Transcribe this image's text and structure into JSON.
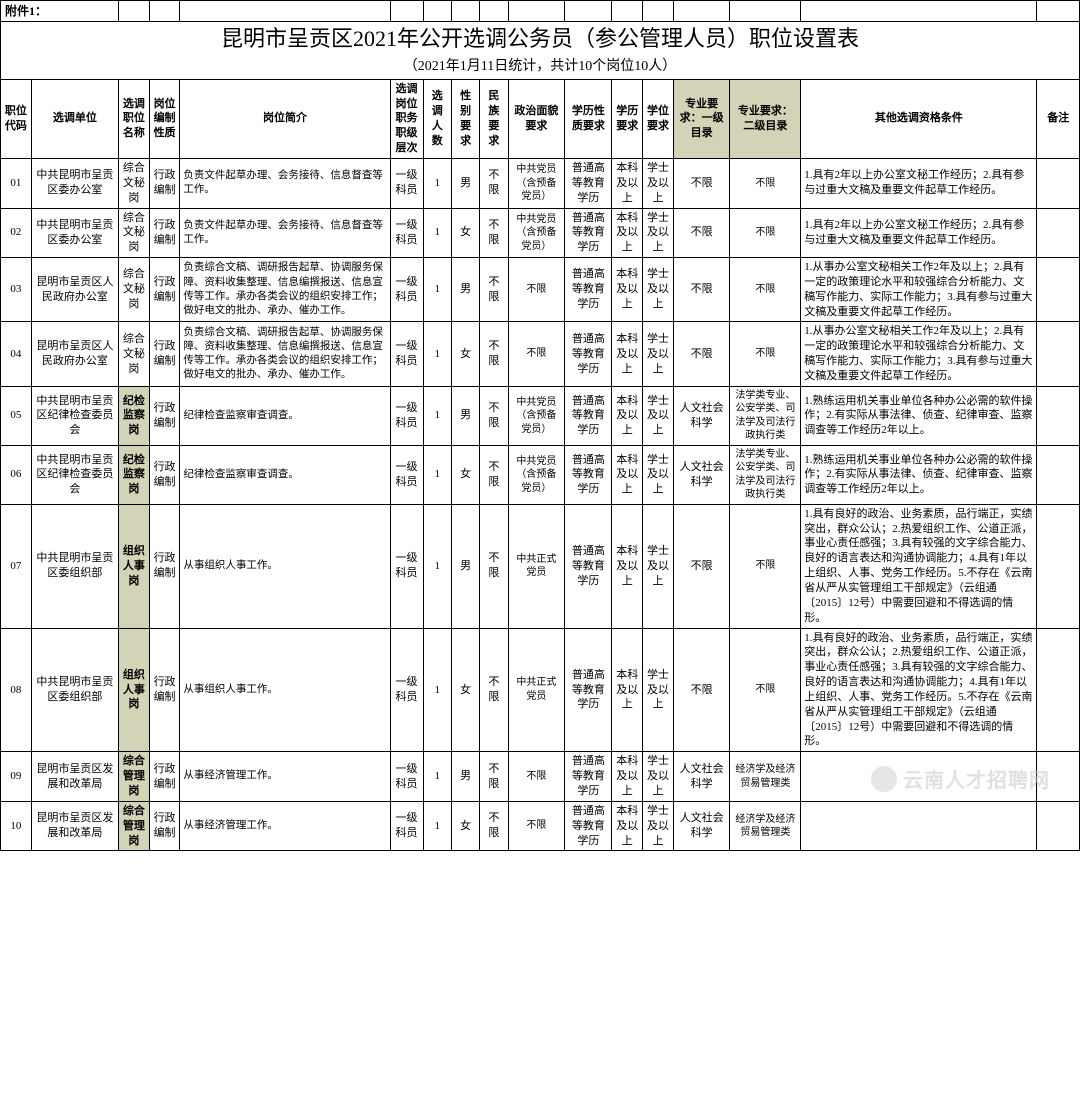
{
  "attachment_label": "附件1：",
  "title": "昆明市呈贡区2021年公开选调公务员（参公管理人员）职位设置表",
  "subtitle": "（2021年1月11日统计，共计10个岗位10人）",
  "watermark": "云南人才招聘网",
  "columns": {
    "code": "职位代码",
    "unit": "选调单位",
    "pos": "选调职位名称",
    "nature": "岗位编制性质",
    "desc": "岗位简介",
    "level": "选调岗位职务职级层次",
    "num": "选调人数",
    "sex": "性别要求",
    "eth": "民族要求",
    "pol": "政治面貌要求",
    "edu": "学历性质要求",
    "edu2": "学历要求",
    "deg": "学位要求",
    "maj1": "专业要求：一级目录",
    "maj2": "专业要求：二级目录",
    "other": "其他选调资格条件",
    "remark": "备注"
  },
  "rows": [
    {
      "code": "01",
      "unit": "中共昆明市呈贡区委办公室",
      "pos": "综合文秘岗",
      "nature": "行政编制",
      "desc": "负责文件起草办理、会务接待、信息督查等工作。",
      "level": "一级科员",
      "num": "1",
      "sex": "男",
      "eth": "不限",
      "pol": "中共党员（含预备党员）",
      "edu": "普通高等教育学历",
      "edu2": "本科及以上",
      "deg": "学士及以上",
      "maj1": "不限",
      "maj2": "不限",
      "other": "1.具有2年以上办公室文秘工作经历；2.具有参与过重大文稿及重要文件起草工作经历。",
      "remark": ""
    },
    {
      "code": "02",
      "unit": "中共昆明市呈贡区委办公室",
      "pos": "综合文秘岗",
      "nature": "行政编制",
      "desc": "负责文件起草办理、会务接待、信息督查等工作。",
      "level": "一级科员",
      "num": "1",
      "sex": "女",
      "eth": "不限",
      "pol": "中共党员（含预备党员）",
      "edu": "普通高等教育学历",
      "edu2": "本科及以上",
      "deg": "学士及以上",
      "maj1": "不限",
      "maj2": "不限",
      "other": "1.具有2年以上办公室文秘工作经历；2.具有参与过重大文稿及重要文件起草工作经历。",
      "remark": ""
    },
    {
      "code": "03",
      "unit": "昆明市呈贡区人民政府办公室",
      "pos": "综合文秘岗",
      "nature": "行政编制",
      "desc": "负责综合文稿、调研报告起草、协调服务保障、资料收集整理、信息编撰报送、信息宣传等工作。承办各类会议的组织安排工作；做好电文的批办、承办、催办工作。",
      "level": "一级科员",
      "num": "1",
      "sex": "男",
      "eth": "不限",
      "pol": "不限",
      "edu": "普通高等教育学历",
      "edu2": "本科及以上",
      "deg": "学士及以上",
      "maj1": "不限",
      "maj2": "不限",
      "other": "1.从事办公室文秘相关工作2年及以上；2.具有一定的政策理论水平和较强综合分析能力、文稿写作能力、实际工作能力；3.具有参与过重大文稿及重要文件起草工作经历。",
      "remark": ""
    },
    {
      "code": "04",
      "unit": "昆明市呈贡区人民政府办公室",
      "pos": "综合文秘岗",
      "nature": "行政编制",
      "desc": "负责综合文稿、调研报告起草、协调服务保障、资料收集整理、信息编撰报送、信息宣传等工作。承办各类会议的组织安排工作；做好电文的批办、承办、催办工作。",
      "level": "一级科员",
      "num": "1",
      "sex": "女",
      "eth": "不限",
      "pol": "不限",
      "edu": "普通高等教育学历",
      "edu2": "本科及以上",
      "deg": "学士及以上",
      "maj1": "不限",
      "maj2": "不限",
      "other": "1.从事办公室文秘相关工作2年及以上；2.具有一定的政策理论水平和较强综合分析能力、文稿写作能力、实际工作能力；3.具有参与过重大文稿及重要文件起草工作经历。",
      "remark": ""
    },
    {
      "code": "05",
      "unit": "中共昆明市呈贡区纪律检查委员会",
      "pos": "纪检监察岗",
      "pos_hl": true,
      "nature": "行政编制",
      "desc": "纪律检查监察审查调查。",
      "level": "一级科员",
      "num": "1",
      "sex": "男",
      "eth": "不限",
      "pol": "中共党员（含预备党员）",
      "edu": "普通高等教育学历",
      "edu2": "本科及以上",
      "deg": "学士及以上",
      "maj1": "人文社会科学",
      "maj2": "法学类专业、公安学类、司法学及司法行政执行类",
      "other": "1.熟练运用机关事业单位各种办公必需的软件操作；2.有实际从事法律、侦查、纪律审查、监察调查等工作经历2年以上。",
      "remark": ""
    },
    {
      "code": "06",
      "unit": "中共昆明市呈贡区纪律检查委员会",
      "pos": "纪检监察岗",
      "pos_hl": true,
      "nature": "行政编制",
      "desc": "纪律检查监察审查调查。",
      "level": "一级科员",
      "num": "1",
      "sex": "女",
      "eth": "不限",
      "pol": "中共党员（含预备党员）",
      "edu": "普通高等教育学历",
      "edu2": "本科及以上",
      "deg": "学士及以上",
      "maj1": "人文社会科学",
      "maj2": "法学类专业、公安学类、司法学及司法行政执行类",
      "other": "1.熟练运用机关事业单位各种办公必需的软件操作；2.有实际从事法律、侦查、纪律审查、监察调查等工作经历2年以上。",
      "remark": ""
    },
    {
      "code": "07",
      "unit": "中共昆明市呈贡区委组织部",
      "pos": "组织人事岗",
      "pos_hl": true,
      "nature": "行政编制",
      "desc": "从事组织人事工作。",
      "level": "一级科员",
      "num": "1",
      "sex": "男",
      "eth": "不限",
      "pol": "中共正式党员",
      "edu": "普通高等教育学历",
      "edu2": "本科及以上",
      "deg": "学士及以上",
      "maj1": "不限",
      "maj2": "不限",
      "other": "1.具有良好的政治、业务素质，品行端正，实绩突出，群众公认；2.热爱组织工作、公道正派，事业心责任感强；3.具有较强的文字综合能力、良好的语言表达和沟通协调能力；4.具有1年以上组织、人事、党务工作经历。5.不存在《云南省从严从实管理组工干部规定》（云组通〔2015〕12号）中需要回避和不得选调的情形。",
      "remark": ""
    },
    {
      "code": "08",
      "unit": "中共昆明市呈贡区委组织部",
      "pos": "组织人事岗",
      "pos_hl": true,
      "nature": "行政编制",
      "desc": "从事组织人事工作。",
      "level": "一级科员",
      "num": "1",
      "sex": "女",
      "eth": "不限",
      "pol": "中共正式党员",
      "edu": "普通高等教育学历",
      "edu2": "本科及以上",
      "deg": "学士及以上",
      "maj1": "不限",
      "maj2": "不限",
      "other": "1.具有良好的政治、业务素质，品行端正，实绩突出，群众公认；2.热爱组织工作、公道正派，事业心责任感强；3.具有较强的文字综合能力、良好的语言表达和沟通协调能力；4.具有1年以上组织、人事、党务工作经历。5.不存在《云南省从严从实管理组工干部规定》（云组通〔2015〕12号）中需要回避和不得选调的情形。",
      "remark": ""
    },
    {
      "code": "09",
      "unit": "昆明市呈贡区发展和改革局",
      "pos": "综合管理岗",
      "pos_hl": true,
      "nature": "行政编制",
      "desc": "从事经济管理工作。",
      "level": "一级科员",
      "num": "1",
      "sex": "男",
      "eth": "不限",
      "pol": "不限",
      "edu": "普通高等教育学历",
      "edu2": "本科及以上",
      "deg": "学士及以上",
      "maj1": "人文社会科学",
      "maj2": "经济学及经济贸易管理类",
      "other": "",
      "remark": ""
    },
    {
      "code": "10",
      "unit": "昆明市呈贡区发展和改革局",
      "pos": "综合管理岗",
      "pos_hl": true,
      "nature": "行政编制",
      "desc": "从事经济管理工作。",
      "level": "一级科员",
      "num": "1",
      "sex": "女",
      "eth": "不限",
      "pol": "不限",
      "edu": "普通高等教育学历",
      "edu2": "本科及以上",
      "deg": "学士及以上",
      "maj1": "人文社会科学",
      "maj2": "经济学及经济贸易管理类",
      "other": "",
      "remark": ""
    }
  ]
}
